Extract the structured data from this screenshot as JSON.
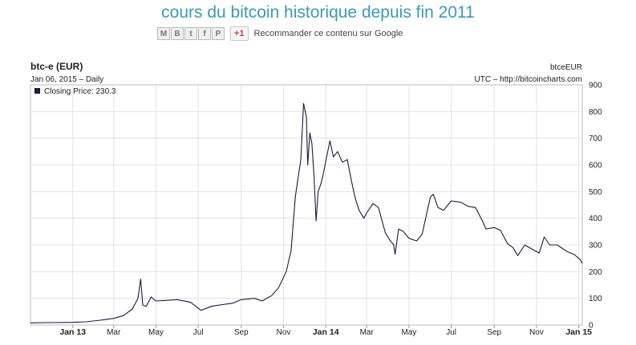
{
  "page": {
    "title": "cours du bitcoin historique depuis fin 2011",
    "share": {
      "icons": [
        "gmail-icon",
        "blogger-icon",
        "twitter-icon",
        "facebook-icon",
        "pinterest-icon"
      ],
      "gplus_label": "+1",
      "recommend_text": "Recommander ce contenu sur Google"
    }
  },
  "chart_data": {
    "type": "line",
    "title": "btc-e (EUR)",
    "subtitle": "Jan 06, 2015 – Daily",
    "source_symbol": "btceEUR",
    "source_line": "UTC – http://bitcoincharts.com",
    "legend": {
      "label": "Closing Price: 230.3",
      "placement": "top-left",
      "color": "#1a1a40"
    },
    "xlabel": "",
    "ylabel": "",
    "ylim": [
      0,
      900
    ],
    "grid": true,
    "y_ticks": [
      "0",
      "100",
      "200",
      "300",
      "400",
      "500",
      "600",
      "700",
      "800",
      "900"
    ],
    "x_ticks": [
      {
        "label": "Jan 13",
        "date": "2013-01-01",
        "bold": true
      },
      {
        "label": "Mar",
        "date": "2013-03-01",
        "bold": false
      },
      {
        "label": "May",
        "date": "2013-05-01",
        "bold": false
      },
      {
        "label": "Jul",
        "date": "2013-07-01",
        "bold": false
      },
      {
        "label": "Sep",
        "date": "2013-09-01",
        "bold": false
      },
      {
        "label": "Nov",
        "date": "2013-11-01",
        "bold": false
      },
      {
        "label": "Jan 14",
        "date": "2014-01-01",
        "bold": true
      },
      {
        "label": "Mar",
        "date": "2014-03-01",
        "bold": false
      },
      {
        "label": "May",
        "date": "2014-05-01",
        "bold": false
      },
      {
        "label": "Jul",
        "date": "2014-07-01",
        "bold": false
      },
      {
        "label": "Sep",
        "date": "2014-09-01",
        "bold": false
      },
      {
        "label": "Nov",
        "date": "2014-11-01",
        "bold": false
      },
      {
        "label": "Jan 15",
        "date": "2015-01-01",
        "bold": true
      }
    ],
    "x_range": [
      "2012-11-01",
      "2015-01-06"
    ],
    "series": [
      {
        "color": "#1a1a40",
        "points": [
          [
            "2012-11-01",
            8
          ],
          [
            "2012-12-01",
            9
          ],
          [
            "2013-01-01",
            10
          ],
          [
            "2013-01-20",
            12
          ],
          [
            "2013-02-10",
            18
          ],
          [
            "2013-03-01",
            25
          ],
          [
            "2013-03-15",
            35
          ],
          [
            "2013-03-28",
            60
          ],
          [
            "2013-04-05",
            100
          ],
          [
            "2013-04-09",
            172
          ],
          [
            "2013-04-12",
            75
          ],
          [
            "2013-04-17",
            70
          ],
          [
            "2013-04-24",
            105
          ],
          [
            "2013-05-01",
            90
          ],
          [
            "2013-05-15",
            92
          ],
          [
            "2013-06-01",
            95
          ],
          [
            "2013-06-20",
            85
          ],
          [
            "2013-07-05",
            55
          ],
          [
            "2013-07-20",
            70
          ],
          [
            "2013-08-01",
            75
          ],
          [
            "2013-08-20",
            82
          ],
          [
            "2013-09-01",
            95
          ],
          [
            "2013-09-20",
            100
          ],
          [
            "2013-10-01",
            90
          ],
          [
            "2013-10-15",
            110
          ],
          [
            "2013-10-25",
            140
          ],
          [
            "2013-11-05",
            200
          ],
          [
            "2013-11-12",
            280
          ],
          [
            "2013-11-18",
            480
          ],
          [
            "2013-11-22",
            550
          ],
          [
            "2013-11-26",
            620
          ],
          [
            "2013-11-30",
            830
          ],
          [
            "2013-12-04",
            780
          ],
          [
            "2013-12-06",
            600
          ],
          [
            "2013-12-09",
            720
          ],
          [
            "2013-12-12",
            680
          ],
          [
            "2013-12-15",
            560
          ],
          [
            "2013-12-18",
            390
          ],
          [
            "2013-12-21",
            500
          ],
          [
            "2013-12-25",
            530
          ],
          [
            "2013-12-28",
            560
          ],
          [
            "2014-01-03",
            640
          ],
          [
            "2014-01-07",
            690
          ],
          [
            "2014-01-12",
            630
          ],
          [
            "2014-01-18",
            650
          ],
          [
            "2014-01-25",
            610
          ],
          [
            "2014-02-01",
            620
          ],
          [
            "2014-02-07",
            540
          ],
          [
            "2014-02-12",
            480
          ],
          [
            "2014-02-18",
            430
          ],
          [
            "2014-02-25",
            400
          ],
          [
            "2014-03-01",
            420
          ],
          [
            "2014-03-10",
            455
          ],
          [
            "2014-03-18",
            440
          ],
          [
            "2014-03-28",
            345
          ],
          [
            "2014-04-03",
            320
          ],
          [
            "2014-04-09",
            300
          ],
          [
            "2014-04-11",
            265
          ],
          [
            "2014-04-16",
            360
          ],
          [
            "2014-04-23",
            350
          ],
          [
            "2014-05-01",
            325
          ],
          [
            "2014-05-12",
            315
          ],
          [
            "2014-05-20",
            340
          ],
          [
            "2014-05-25",
            400
          ],
          [
            "2014-06-01",
            480
          ],
          [
            "2014-06-05",
            490
          ],
          [
            "2014-06-12",
            440
          ],
          [
            "2014-06-20",
            430
          ],
          [
            "2014-07-01",
            465
          ],
          [
            "2014-07-15",
            460
          ],
          [
            "2014-07-25",
            445
          ],
          [
            "2014-08-05",
            440
          ],
          [
            "2014-08-15",
            390
          ],
          [
            "2014-08-20",
            360
          ],
          [
            "2014-09-01",
            365
          ],
          [
            "2014-09-10",
            355
          ],
          [
            "2014-09-20",
            305
          ],
          [
            "2014-09-28",
            290
          ],
          [
            "2014-10-05",
            260
          ],
          [
            "2014-10-15",
            300
          ],
          [
            "2014-10-25",
            285
          ],
          [
            "2014-11-05",
            270
          ],
          [
            "2014-11-12",
            330
          ],
          [
            "2014-11-20",
            300
          ],
          [
            "2014-12-01",
            300
          ],
          [
            "2014-12-15",
            275
          ],
          [
            "2014-12-25",
            265
          ],
          [
            "2015-01-03",
            245
          ],
          [
            "2015-01-06",
            230
          ]
        ]
      }
    ]
  }
}
